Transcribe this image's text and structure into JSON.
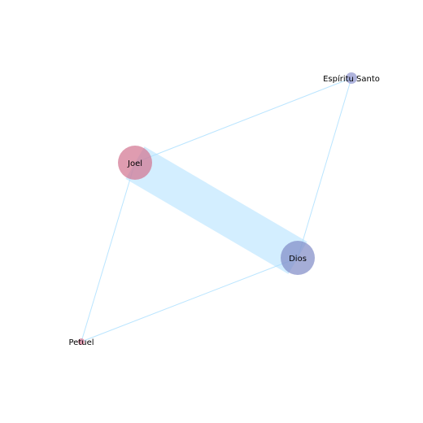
{
  "graph": {
    "nodes": [
      {
        "id": "joel",
        "label": "Joel",
        "color": "#d2728f",
        "importance": 1.0
      },
      {
        "id": "dios",
        "label": "Dios",
        "color": "#7f8ac6",
        "importance": 1.0
      },
      {
        "id": "espiritu",
        "label": "Espíritu Santo",
        "color": "#8f94cf",
        "importance": 0.25
      },
      {
        "id": "petuel",
        "label": "Petuel",
        "color": "#d2728f",
        "importance": 0.15
      }
    ],
    "edges": [
      {
        "source": "joel",
        "target": "dios",
        "weight": 10
      },
      {
        "source": "joel",
        "target": "espiritu",
        "weight": 1
      },
      {
        "source": "joel",
        "target": "petuel",
        "weight": 1
      },
      {
        "source": "dios",
        "target": "espiritu",
        "weight": 1
      },
      {
        "source": "dios",
        "target": "petuel",
        "weight": 1
      }
    ],
    "edge_color": "#aee0ff"
  }
}
